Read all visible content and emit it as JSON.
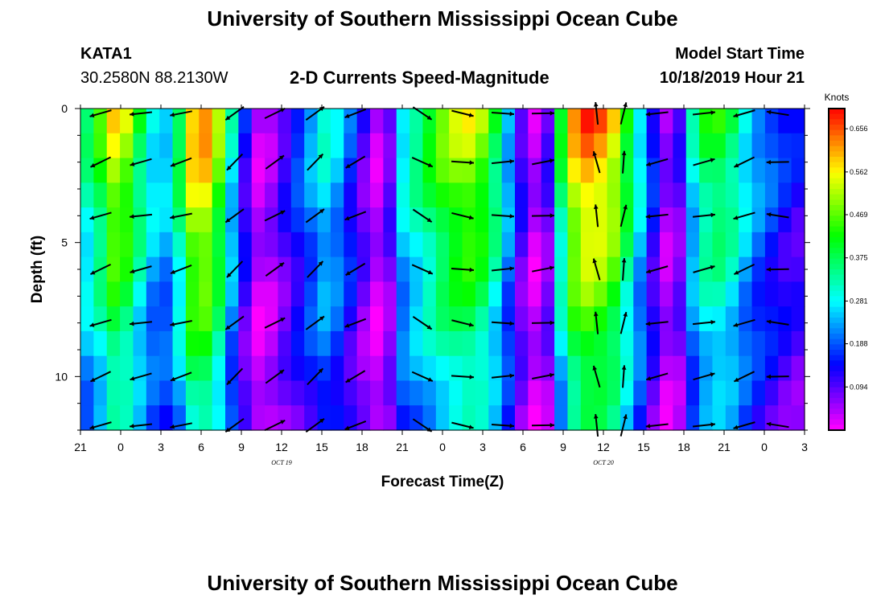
{
  "header": {
    "title": "University of Southern Mississippi Ocean Cube",
    "station": "KATA1",
    "coords": "30.2580N 88.2130W",
    "subtitle": "2-D Currents Speed-Magnitude",
    "model_label": "Model Start Time",
    "model_time": "10/18/2019 Hour 21"
  },
  "footer": {
    "title": "University of Southern Mississippi Ocean Cube"
  },
  "chart_data": {
    "type": "heatmap",
    "title": "2-D Currents Speed-Magnitude",
    "xlabel": "Forecast Time(Z)",
    "ylabel": "Depth (ft)",
    "colorbar_label": "Knots",
    "x_range_hours": [
      0,
      54
    ],
    "ylim": [
      0,
      12
    ],
    "x_ticks": [
      "21",
      "0",
      "3",
      "6",
      "9",
      "12",
      "15",
      "18",
      "21",
      "0",
      "3",
      "6",
      "9",
      "12",
      "15",
      "18",
      "21",
      "0",
      "3"
    ],
    "date_labels": [
      {
        "text": "OCT 19",
        "hour": 15
      },
      {
        "text": "OCT 20",
        "hour": 39
      }
    ],
    "y_ticks": [
      "0",
      "5",
      "10"
    ],
    "colorbar_ticks": [
      "0.656",
      "0.562",
      "0.469",
      "0.375",
      "0.281",
      "0.188",
      "0.094"
    ],
    "speed_range": [
      0.0,
      0.7
    ],
    "depths": [
      0,
      1,
      2,
      3,
      4,
      5,
      6,
      7,
      8,
      9,
      10,
      11,
      12
    ],
    "surface_speed": [
      0.36,
      0.44,
      0.56,
      0.52,
      0.4,
      0.3,
      0.28,
      0.4,
      0.6,
      0.62,
      0.5,
      0.3,
      0.14,
      0.04,
      0.06,
      0.12,
      0.18,
      0.24,
      0.3,
      0.26,
      0.18,
      0.1,
      0.04,
      0.1,
      0.3,
      0.36,
      0.42,
      0.48,
      0.52,
      0.54,
      0.5,
      0.4,
      0.26,
      0.12,
      0.04,
      0.1,
      0.4,
      0.6,
      0.66,
      0.64,
      0.58,
      0.44,
      0.3,
      0.16,
      0.06,
      0.1,
      0.3,
      0.4,
      0.42,
      0.38,
      0.3,
      0.24,
      0.2,
      0.16,
      0.14
    ],
    "arrows": {
      "hours": [
        1.5,
        4.5,
        7.5,
        11.5,
        14.5,
        17.5,
        20.5,
        25.5,
        28.5,
        31.5,
        34.5,
        38.5,
        40.5,
        43,
        46.5,
        49.5,
        52
      ],
      "depths": [
        0,
        2,
        4,
        6,
        8,
        10,
        12
      ],
      "direction_deg": [
        200,
        190,
        195,
        220,
        30,
        40,
        205,
        330,
        350,
        0,
        5,
        100,
        80,
        190,
        10,
        200,
        175
      ]
    }
  }
}
